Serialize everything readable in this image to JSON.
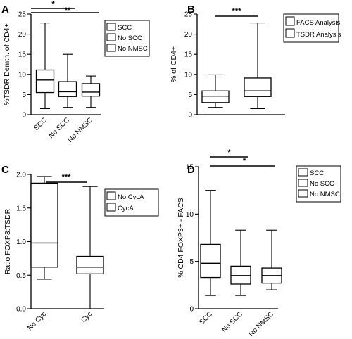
{
  "chart_data": [
    {
      "panel": "A",
      "type": "box",
      "ylabel": "%TSDR Demth. of CD4+",
      "ylim": [
        0,
        25
      ],
      "yticks": [
        0,
        5,
        10,
        15,
        20,
        25
      ],
      "categories": [
        "SCC",
        "No SCC",
        "No NMSC"
      ],
      "series": [
        {
          "name": "SCC",
          "min": 1.5,
          "q1": 5.5,
          "median": 8.6,
          "q3": 11.1,
          "max": 22.8,
          "fill": "plain"
        },
        {
          "name": "No SCC",
          "min": 1.8,
          "q1": 4.5,
          "median": 5.7,
          "q3": 8.2,
          "max": 15.0,
          "fill": "diag"
        },
        {
          "name": "No NMSC",
          "min": 1.8,
          "q1": 4.6,
          "median": 5.6,
          "q3": 7.7,
          "max": 9.6,
          "fill": "grid"
        }
      ],
      "significance": [
        {
          "label": "*",
          "from": 0,
          "to": 1
        },
        {
          "label": "**",
          "from": 0,
          "to": 2
        }
      ]
    },
    {
      "panel": "B",
      "type": "box",
      "ylabel": "% of CD4+",
      "ylim": [
        0,
        25
      ],
      "yticks": [
        0,
        5,
        10,
        15,
        20,
        25
      ],
      "categories": [
        "",
        ""
      ],
      "series": [
        {
          "name": "FACS Analysis",
          "min": 1.8,
          "q1": 3.0,
          "median": 4.6,
          "q3": 5.9,
          "max": 9.9,
          "fill": "diag"
        },
        {
          "name": "TSDR Analysis",
          "min": 1.5,
          "q1": 4.5,
          "median": 5.9,
          "q3": 9.1,
          "max": 22.8,
          "fill": "plain"
        }
      ],
      "significance": [
        {
          "label": "***",
          "from": 0,
          "to": 1
        }
      ]
    },
    {
      "panel": "C",
      "type": "box",
      "ylabel": "Ratio FOXP3:TSDR",
      "ylim": [
        0,
        2.0
      ],
      "yticks": [
        0.0,
        0.5,
        1.0,
        1.5,
        2.0
      ],
      "categories": [
        "No Cyc",
        "Cyc"
      ],
      "series": [
        {
          "name": "No CycA",
          "min": 0.44,
          "q1": 0.62,
          "median": 0.98,
          "q3": 1.87,
          "max": 1.97,
          "fill": "plain"
        },
        {
          "name": "CycA",
          "min": 0.0,
          "q1": 0.52,
          "median": 0.62,
          "q3": 0.78,
          "max": 1.82,
          "fill": "diag"
        }
      ],
      "significance": [
        {
          "label": "***",
          "from": 0,
          "to": 1
        }
      ]
    },
    {
      "panel": "D",
      "type": "box",
      "ylabel": "% CD4 FOXP3+ - FACS",
      "ylim": [
        0,
        15
      ],
      "yticks": [
        0,
        5,
        10,
        15
      ],
      "categories": [
        "SCC",
        "No SCC",
        "No NMSC"
      ],
      "series": [
        {
          "name": "SCC",
          "min": 1.4,
          "q1": 3.3,
          "median": 4.8,
          "q3": 6.8,
          "max": 12.5,
          "fill": "plain"
        },
        {
          "name": "No SCC",
          "min": 1.4,
          "q1": 2.6,
          "median": 3.5,
          "q3": 4.5,
          "max": 8.3,
          "fill": "dots"
        },
        {
          "name": "No NMSC",
          "min": 2.0,
          "q1": 2.7,
          "median": 3.5,
          "q3": 4.3,
          "max": 8.3,
          "fill": "hlines"
        }
      ],
      "significance": [
        {
          "label": "*",
          "from": 0,
          "to": 1
        },
        {
          "label": "*",
          "from": 0,
          "to": 2
        }
      ]
    }
  ]
}
